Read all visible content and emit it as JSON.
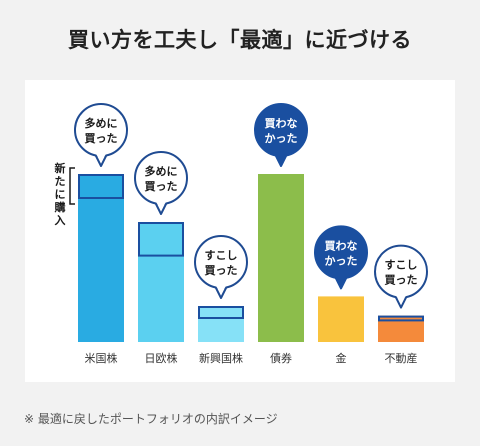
{
  "title": "買い方を工夫し「最適」に近づける",
  "note": "※ 最適に戻したポートフォリオの内訳イメージ",
  "colors": {
    "background": "#f2f2f2",
    "panel": "#ffffff",
    "box_outline": "#1a4fa0",
    "dark_bubble": "#1a4fa0",
    "light_bubble_border": "#1f4b92"
  },
  "chart_data": {
    "type": "bar",
    "title": "買い方を工夫し「最適」に近づける",
    "categories": [
      "米国株",
      "日欧株",
      "新興国株",
      "債券",
      "金",
      "不動産"
    ],
    "values": [
      70,
      50,
      15,
      70,
      19,
      11
    ],
    "series_colors": [
      "#29abe2",
      "#5bd0f0",
      "#86e1f7",
      "#8cbd4b",
      "#f9c33d",
      "#f48a3b"
    ],
    "new_purchase_portion": [
      10,
      14,
      5,
      0,
      0,
      2
    ],
    "callouts": [
      {
        "line1": "多めに",
        "line2": "買った",
        "style": "light"
      },
      {
        "line1": "多めに",
        "line2": "買った",
        "style": "light"
      },
      {
        "line1": "すこし",
        "line2": "買った",
        "style": "light"
      },
      {
        "line1": "買わな",
        "line2": "かった",
        "style": "dark"
      },
      {
        "line1": "買わな",
        "line2": "かった",
        "style": "dark"
      },
      {
        "line1": "すこし",
        "line2": "買った",
        "style": "light"
      }
    ],
    "bracket_label": "新たに購入",
    "ylim": [
      0,
      80
    ],
    "grid": false
  }
}
